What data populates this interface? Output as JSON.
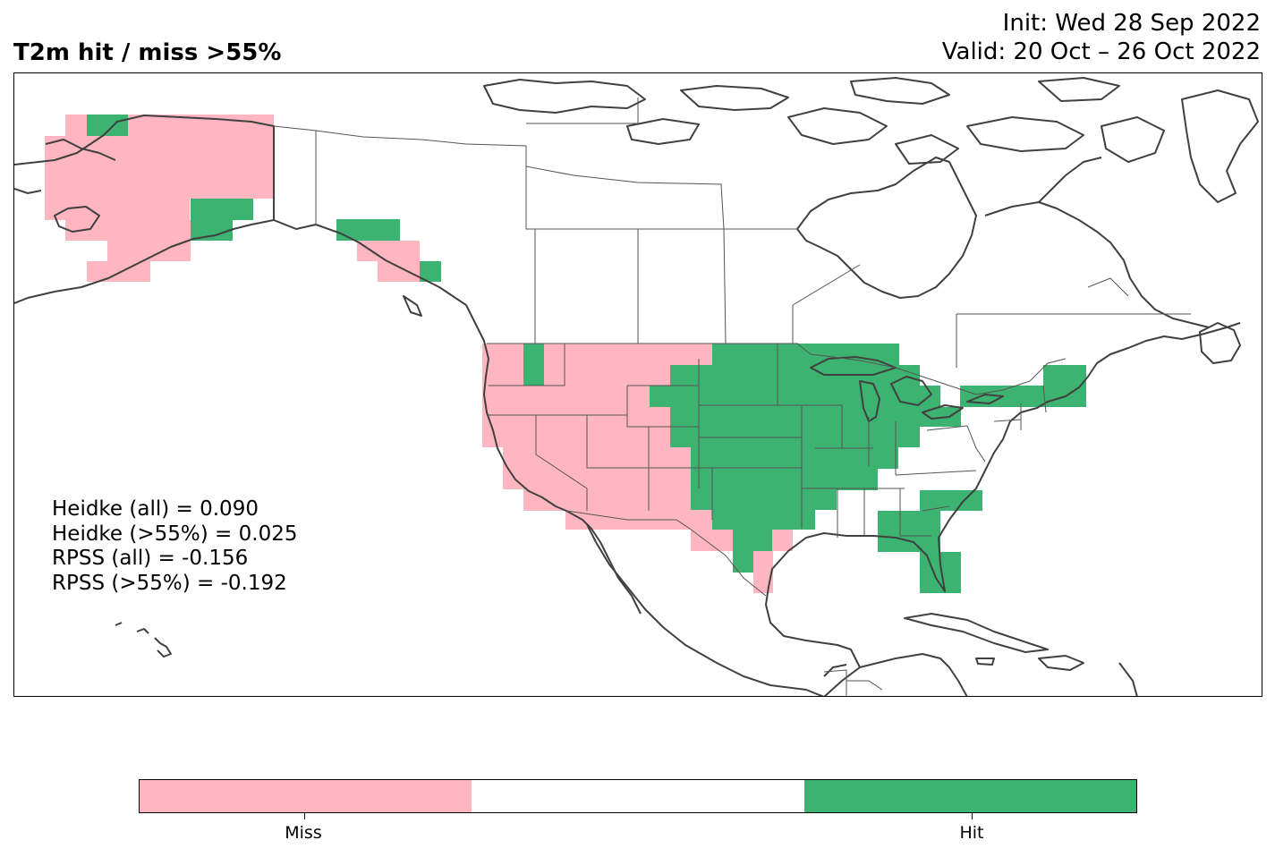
{
  "header": {
    "title": "T2m hit / miss  >55%",
    "init_text": "Init: Wed 28 Sep 2022",
    "valid_text": "Valid: 20 Oct – 26 Oct 2022"
  },
  "stats": {
    "heidke_all": "Heidke (all) = 0.090",
    "heidke_55": "Heidke (>55%) = 0.025",
    "rpss_all": "RPSS (all) = -0.156",
    "rpss_55": "RPSS (>55%) = -0.192"
  },
  "colors": {
    "miss": "#FFB6C1",
    "neutral": "#FFFFFF",
    "hit": "#3CB371",
    "coastline": "#404040",
    "borders": "#555555"
  },
  "legend": {
    "categories": [
      {
        "label": "Miss",
        "color": "#FFB6C1"
      },
      {
        "label": "",
        "color": "#FFFFFF"
      },
      {
        "label": "Hit",
        "color": "#3CB371"
      }
    ]
  },
  "map": {
    "region": "North America",
    "categories_present": [
      "Miss",
      "Hit"
    ]
  }
}
